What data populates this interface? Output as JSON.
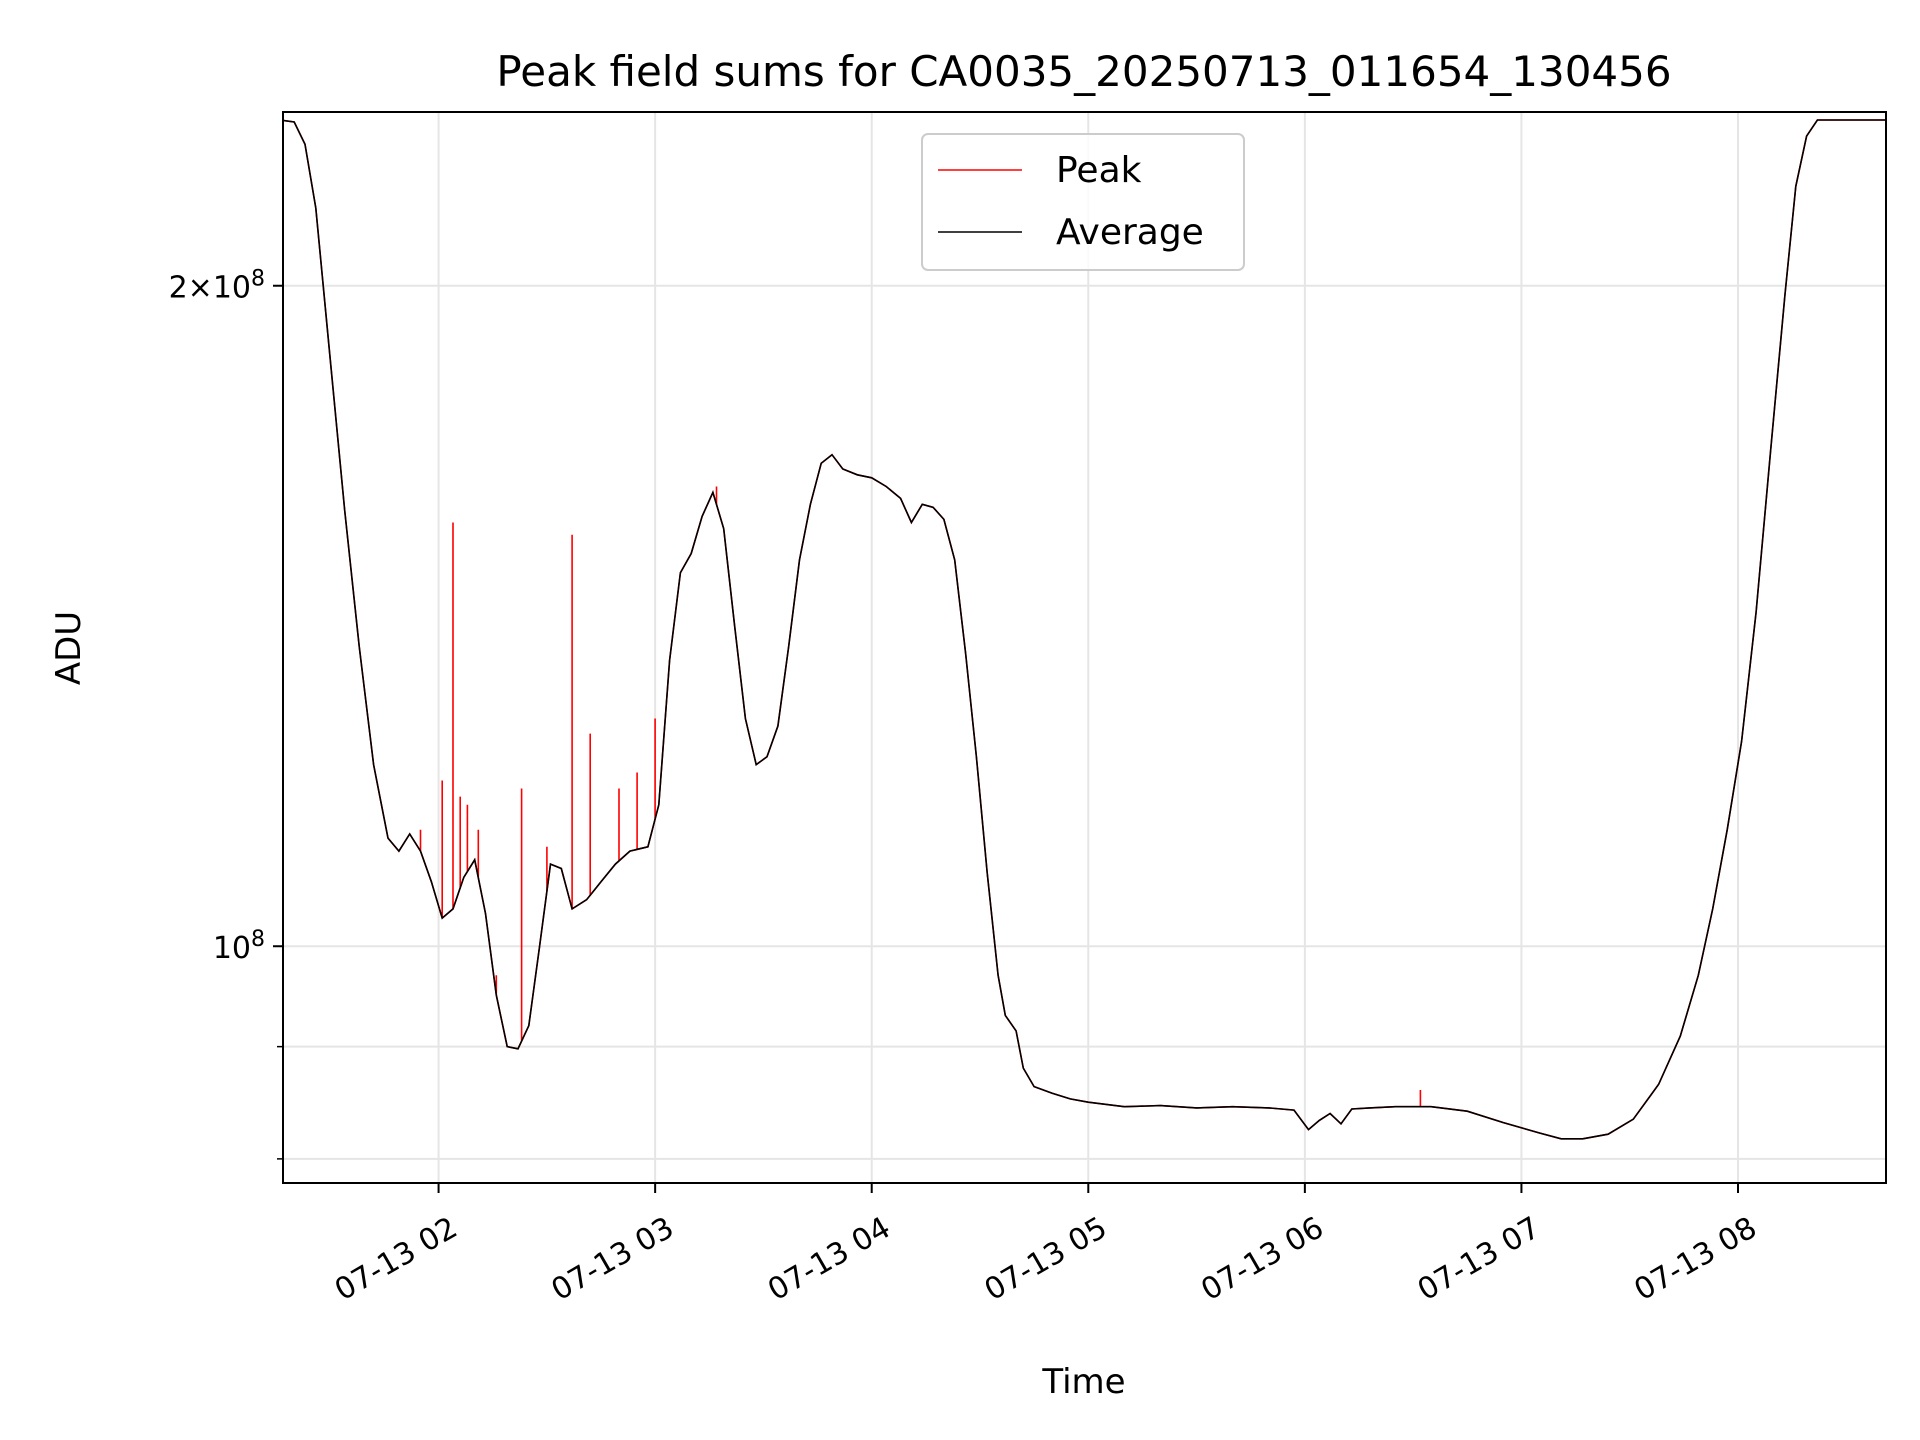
{
  "chart_data": {
    "type": "line",
    "title": "Peak field sums for CA0035_20250713_011654_130456",
    "xlabel": "Time",
    "ylabel": "ADU",
    "x_scale": "time",
    "y_scale": "log",
    "xlim": [
      "2025-07-13 01:16:54",
      "2025-07-13 08:41:00"
    ],
    "ylim": [
      78000000,
      240000000
    ],
    "grid": true,
    "legend_position": "top-center",
    "x_ticks": [
      {
        "time": "2025-07-13 02:00",
        "label": "07-13 02"
      },
      {
        "time": "2025-07-13 03:00",
        "label": "07-13 03"
      },
      {
        "time": "2025-07-13 04:00",
        "label": "07-13 04"
      },
      {
        "time": "2025-07-13 05:00",
        "label": "07-13 05"
      },
      {
        "time": "2025-07-13 06:00",
        "label": "07-13 06"
      },
      {
        "time": "2025-07-13 07:00",
        "label": "07-13 07"
      },
      {
        "time": "2025-07-13 08:00",
        "label": "07-13 08"
      }
    ],
    "y_major_ticks": [
      {
        "value": 100000000,
        "base": "10",
        "exp": "8",
        "coef": ""
      },
      {
        "value": 200000000,
        "base": "10",
        "exp": "8",
        "coef": "2"
      }
    ],
    "y_minor_ticks": [
      80000000,
      90000000
    ],
    "series": [
      {
        "name": "Peak",
        "color": "#ff0000",
        "spikes": [
          {
            "time": "2025-07-13 01:55",
            "value": 113000000
          },
          {
            "time": "2025-07-13 02:01",
            "value": 119000000
          },
          {
            "time": "2025-07-13 02:04",
            "value": 156000000
          },
          {
            "time": "2025-07-13 02:06",
            "value": 117000000
          },
          {
            "time": "2025-07-13 02:08",
            "value": 116000000
          },
          {
            "time": "2025-07-13 02:11",
            "value": 113000000
          },
          {
            "time": "2025-07-13 02:16",
            "value": 97000000
          },
          {
            "time": "2025-07-13 02:23",
            "value": 118000000
          },
          {
            "time": "2025-07-13 02:30",
            "value": 111000000
          },
          {
            "time": "2025-07-13 02:37",
            "value": 154000000
          },
          {
            "time": "2025-07-13 02:42",
            "value": 125000000
          },
          {
            "time": "2025-07-13 02:50",
            "value": 118000000
          },
          {
            "time": "2025-07-13 02:55",
            "value": 120000000
          },
          {
            "time": "2025-07-13 03:00",
            "value": 127000000
          },
          {
            "time": "2025-07-13 03:17",
            "value": 162000000
          },
          {
            "time": "2025-07-13 06:32",
            "value": 86000000
          }
        ]
      },
      {
        "name": "Average",
        "color": "#000000",
        "points": [
          [
            "2025-07-13 01:16",
            238000000
          ],
          [
            "2025-07-13 01:20",
            237500000
          ],
          [
            "2025-07-13 01:23",
            232000000
          ],
          [
            "2025-07-13 01:26",
            217000000
          ],
          [
            "2025-07-13 01:30",
            185000000
          ],
          [
            "2025-07-13 01:34",
            158000000
          ],
          [
            "2025-07-13 01:38",
            137000000
          ],
          [
            "2025-07-13 01:42",
            121000000
          ],
          [
            "2025-07-13 01:46",
            112000000
          ],
          [
            "2025-07-13 01:49",
            110500000
          ],
          [
            "2025-07-13 01:52",
            112500000
          ],
          [
            "2025-07-13 01:55",
            110500000
          ],
          [
            "2025-07-13 01:58",
            107000000
          ],
          [
            "2025-07-13 02:01",
            103000000
          ],
          [
            "2025-07-13 02:04",
            104000000
          ],
          [
            "2025-07-13 02:07",
            107500000
          ],
          [
            "2025-07-13 02:10",
            109500000
          ],
          [
            "2025-07-13 02:13",
            103500000
          ],
          [
            "2025-07-13 02:16",
            95000000
          ],
          [
            "2025-07-13 02:19",
            90000000
          ],
          [
            "2025-07-13 02:22",
            89800000
          ],
          [
            "2025-07-13 02:25",
            92000000
          ],
          [
            "2025-07-13 02:28",
            100000000
          ],
          [
            "2025-07-13 02:31",
            109000000
          ],
          [
            "2025-07-13 02:34",
            108500000
          ],
          [
            "2025-07-13 02:37",
            104000000
          ],
          [
            "2025-07-13 02:41",
            105000000
          ],
          [
            "2025-07-13 02:45",
            107000000
          ],
          [
            "2025-07-13 02:49",
            109000000
          ],
          [
            "2025-07-13 02:53",
            110500000
          ],
          [
            "2025-07-13 02:58",
            111000000
          ],
          [
            "2025-07-13 03:01",
            116000000
          ],
          [
            "2025-07-13 03:04",
            135000000
          ],
          [
            "2025-07-13 03:07",
            148000000
          ],
          [
            "2025-07-13 03:10",
            151000000
          ],
          [
            "2025-07-13 03:13",
            157000000
          ],
          [
            "2025-07-13 03:16",
            161000000
          ],
          [
            "2025-07-13 03:19",
            155000000
          ],
          [
            "2025-07-13 03:22",
            140000000
          ],
          [
            "2025-07-13 03:25",
            127000000
          ],
          [
            "2025-07-13 03:28",
            121000000
          ],
          [
            "2025-07-13 03:31",
            122000000
          ],
          [
            "2025-07-13 03:34",
            126000000
          ],
          [
            "2025-07-13 03:37",
            137000000
          ],
          [
            "2025-07-13 03:40",
            150000000
          ],
          [
            "2025-07-13 03:43",
            159000000
          ],
          [
            "2025-07-13 03:46",
            166000000
          ],
          [
            "2025-07-13 03:49",
            167500000
          ],
          [
            "2025-07-13 03:52",
            165000000
          ],
          [
            "2025-07-13 03:56",
            164000000
          ],
          [
            "2025-07-13 04:00",
            163500000
          ],
          [
            "2025-07-13 04:04",
            162000000
          ],
          [
            "2025-07-13 04:08",
            160000000
          ],
          [
            "2025-07-13 04:11",
            156000000
          ],
          [
            "2025-07-13 04:14",
            159000000
          ],
          [
            "2025-07-13 04:17",
            158500000
          ],
          [
            "2025-07-13 04:20",
            156500000
          ],
          [
            "2025-07-13 04:23",
            150000000
          ],
          [
            "2025-07-13 04:26",
            136000000
          ],
          [
            "2025-07-13 04:29",
            122000000
          ],
          [
            "2025-07-13 04:32",
            108000000
          ],
          [
            "2025-07-13 04:35",
            97000000
          ],
          [
            "2025-07-13 04:37",
            93000000
          ],
          [
            "2025-07-13 04:40",
            91500000
          ],
          [
            "2025-07-13 04:42",
            88000000
          ],
          [
            "2025-07-13 04:45",
            86300000
          ],
          [
            "2025-07-13 04:50",
            85700000
          ],
          [
            "2025-07-13 04:55",
            85200000
          ],
          [
            "2025-07-13 05:00",
            84900000
          ],
          [
            "2025-07-13 05:10",
            84500000
          ],
          [
            "2025-07-13 05:20",
            84600000
          ],
          [
            "2025-07-13 05:30",
            84400000
          ],
          [
            "2025-07-13 05:40",
            84500000
          ],
          [
            "2025-07-13 05:50",
            84400000
          ],
          [
            "2025-07-13 05:57",
            84200000
          ],
          [
            "2025-07-13 06:01",
            82500000
          ],
          [
            "2025-07-13 06:04",
            83300000
          ],
          [
            "2025-07-13 06:07",
            83900000
          ],
          [
            "2025-07-13 06:10",
            83000000
          ],
          [
            "2025-07-13 06:13",
            84300000
          ],
          [
            "2025-07-13 06:18",
            84400000
          ],
          [
            "2025-07-13 06:25",
            84500000
          ],
          [
            "2025-07-13 06:35",
            84500000
          ],
          [
            "2025-07-13 06:45",
            84100000
          ],
          [
            "2025-07-13 06:55",
            83100000
          ],
          [
            "2025-07-13 07:05",
            82200000
          ],
          [
            "2025-07-13 07:11",
            81700000
          ],
          [
            "2025-07-13 07:17",
            81700000
          ],
          [
            "2025-07-13 07:24",
            82100000
          ],
          [
            "2025-07-13 07:31",
            83400000
          ],
          [
            "2025-07-13 07:38",
            86500000
          ],
          [
            "2025-07-13 07:44",
            91000000
          ],
          [
            "2025-07-13 07:49",
            97000000
          ],
          [
            "2025-07-13 07:53",
            104000000
          ],
          [
            "2025-07-13 07:57",
            113000000
          ],
          [
            "2025-07-13 08:01",
            124000000
          ],
          [
            "2025-07-13 08:05",
            142000000
          ],
          [
            "2025-07-13 08:09",
            168000000
          ],
          [
            "2025-07-13 08:13",
            198000000
          ],
          [
            "2025-07-13 08:16",
            222000000
          ],
          [
            "2025-07-13 08:19",
            234000000
          ],
          [
            "2025-07-13 08:22",
            238000000
          ],
          [
            "2025-07-13 08:41",
            238000000
          ]
        ]
      }
    ]
  }
}
